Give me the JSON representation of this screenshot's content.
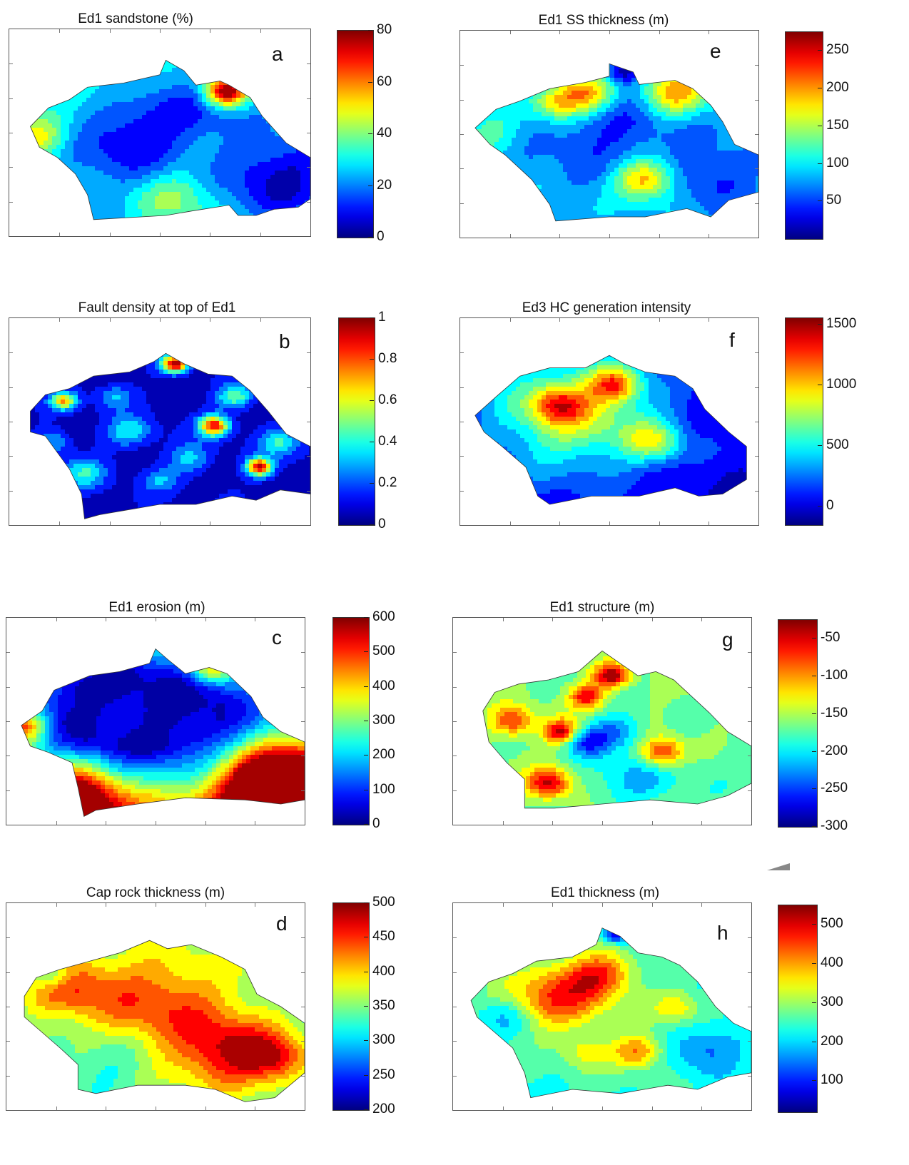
{
  "chart_data": [
    {
      "type": "heatmap",
      "panel": "a",
      "title": "Ed1 sandstone  (%)",
      "colorbar": {
        "range": [
          0,
          80
        ],
        "ticks": [
          0,
          20,
          40,
          60,
          80
        ]
      },
      "colormap": "jet"
    },
    {
      "type": "heatmap",
      "panel": "b",
      "title": "Fault density at top of Ed1",
      "colorbar": {
        "range": [
          0,
          1
        ],
        "ticks": [
          0,
          0.2,
          0.4,
          0.6,
          0.8,
          1
        ],
        "tick_labels": [
          "0",
          "0.2",
          "0.4",
          "0.6",
          "0.8",
          "1"
        ]
      },
      "colormap": "jet"
    },
    {
      "type": "heatmap",
      "panel": "c",
      "title": "Ed1 erosion (m)",
      "colorbar": {
        "range": [
          0,
          600
        ],
        "ticks": [
          0,
          100,
          200,
          300,
          400,
          500,
          600
        ]
      },
      "colormap": "jet"
    },
    {
      "type": "heatmap",
      "panel": "d",
      "title": "Cap rock thickness (m)",
      "colorbar": {
        "range": [
          200,
          500
        ],
        "ticks": [
          200,
          250,
          300,
          350,
          400,
          450,
          500
        ]
      },
      "colormap": "jet"
    },
    {
      "type": "heatmap",
      "panel": "e",
      "title": "Ed1 SS thickness (m)",
      "colorbar": {
        "range": [
          0,
          275
        ],
        "ticks": [
          50,
          100,
          150,
          200,
          250
        ]
      },
      "colormap": "jet"
    },
    {
      "type": "heatmap",
      "panel": "f",
      "title": "Ed3 HC generation intensity",
      "colorbar": {
        "range": [
          -150,
          1550
        ],
        "ticks": [
          0,
          500,
          1000,
          1500
        ]
      },
      "colormap": "jet"
    },
    {
      "type": "heatmap",
      "panel": "g",
      "title": "Ed1 structure (m)",
      "colorbar": {
        "range": [
          -300,
          -25
        ],
        "ticks": [
          -300,
          -250,
          -200,
          -150,
          -100,
          -50
        ]
      },
      "colormap": "jet"
    },
    {
      "type": "heatmap",
      "panel": "h",
      "title": "Ed1 thickness  (m)",
      "colorbar": {
        "range": [
          20,
          550
        ],
        "ticks": [
          100,
          200,
          300,
          400,
          500
        ]
      },
      "colormap": "jet"
    }
  ]
}
